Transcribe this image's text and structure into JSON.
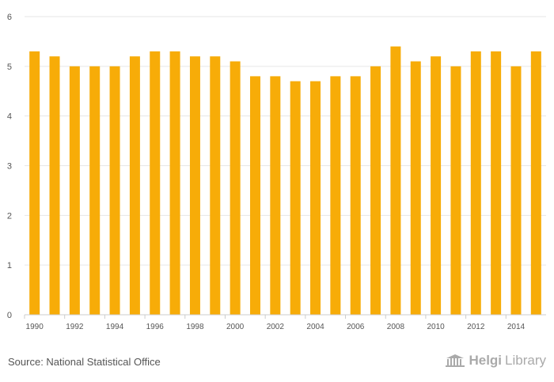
{
  "chart_data": {
    "type": "bar",
    "categories": [
      "1990",
      "1991",
      "1992",
      "1993",
      "1994",
      "1995",
      "1996",
      "1997",
      "1998",
      "1999",
      "2000",
      "2001",
      "2002",
      "2003",
      "2004",
      "2005",
      "2006",
      "2007",
      "2008",
      "2009",
      "2010",
      "2011",
      "2012",
      "2013",
      "2014",
      "2015"
    ],
    "values": [
      5.3,
      5.2,
      5.0,
      5.0,
      5.0,
      5.2,
      5.3,
      5.3,
      5.2,
      5.2,
      5.1,
      4.8,
      4.8,
      4.7,
      4.7,
      4.8,
      4.8,
      5.0,
      5.4,
      5.1,
      5.2,
      5.0,
      5.3,
      5.3,
      5.0,
      5.3
    ],
    "xtick_labels": [
      "1990",
      "1992",
      "1994",
      "1996",
      "1998",
      "2000",
      "2002",
      "2004",
      "2006",
      "2008",
      "2010",
      "2012",
      "2014"
    ],
    "yticks": [
      0,
      1,
      2,
      3,
      4,
      5,
      6
    ],
    "ylim": [
      0,
      6
    ],
    "grid": true,
    "bar_color": "#F7AC08",
    "title": "",
    "xlabel": "",
    "ylabel": ""
  },
  "footer": {
    "source": "Source: National Statistical Office",
    "logo_part1": "Helgi",
    "logo_part2": "Library"
  },
  "colors": {
    "grid": "#e6e6e6",
    "axis": "#cccccc",
    "tick_text": "#555555"
  }
}
